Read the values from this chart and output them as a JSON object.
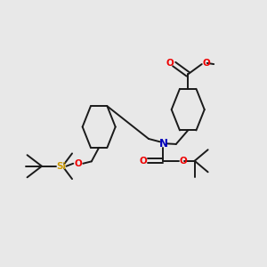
{
  "bg_color": "#e8e8e8",
  "bond_color": "#1a1a1a",
  "O_color": "#ee0000",
  "N_color": "#0000bb",
  "Si_color": "#cc9900",
  "lw": 1.4,
  "figsize": [
    3.0,
    3.0
  ],
  "dpi": 100,
  "xlim": [
    0,
    10
  ],
  "ylim": [
    0,
    10
  ]
}
